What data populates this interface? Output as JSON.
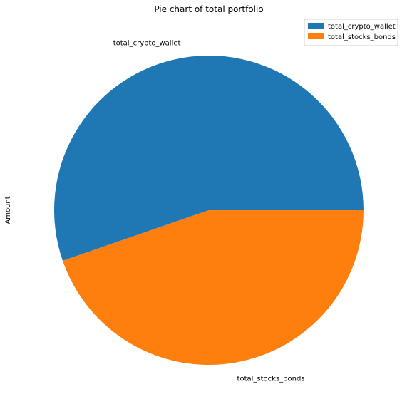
{
  "chart_data": {
    "type": "pie",
    "title": "Pie chart of total portfolio",
    "ylabel": "Amount",
    "categories": [
      "total_crypto_wallet",
      "total_stocks_bonds"
    ],
    "values": [
      55.3,
      44.7
    ],
    "colors": [
      "#1f77b4",
      "#ff7f0e"
    ],
    "legend": {
      "placement": "top-right",
      "entries": [
        "total_crypto_wallet",
        "total_stocks_bonds"
      ]
    }
  }
}
